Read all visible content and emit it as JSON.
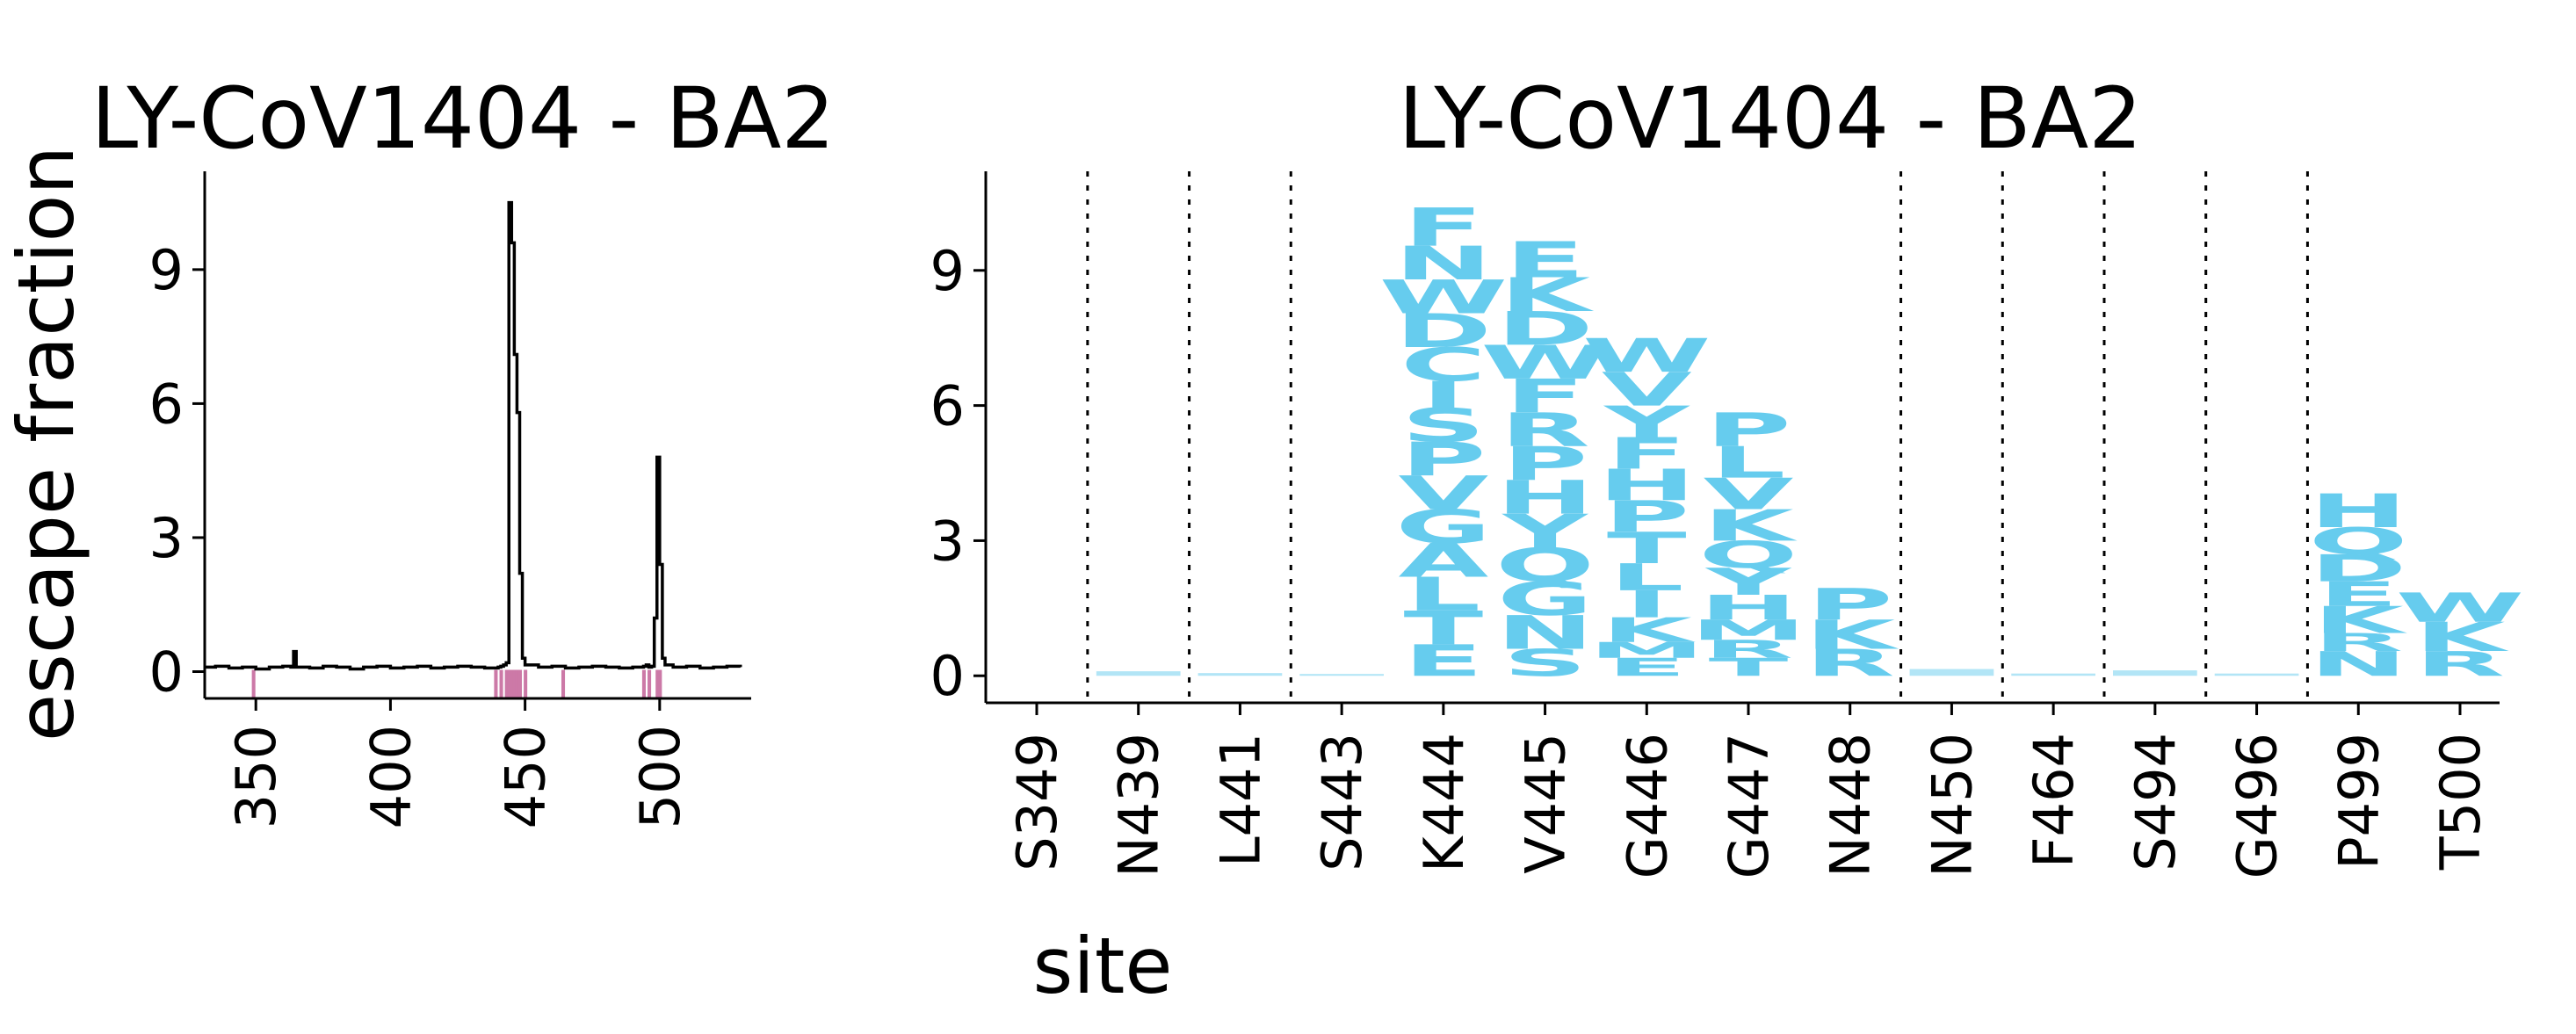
{
  "chart_data": [
    {
      "type": "line",
      "title": "LY-CoV1404 - BA2",
      "ylabel": "escape fraction",
      "xlabel": "",
      "xlim": [
        331,
        534
      ],
      "ylim": [
        -0.6,
        11.2
      ],
      "xticks": [
        350,
        400,
        450,
        500
      ],
      "yticks": [
        0,
        3,
        6,
        9
      ],
      "x": [
        331,
        335,
        340,
        345,
        350,
        355,
        360,
        363,
        364,
        365,
        370,
        375,
        380,
        385,
        390,
        395,
        400,
        405,
        410,
        415,
        420,
        425,
        430,
        435,
        440,
        441,
        442,
        443,
        444,
        445,
        446,
        447,
        448,
        449,
        450,
        455,
        460,
        465,
        470,
        475,
        480,
        485,
        490,
        494,
        495,
        496,
        497,
        498,
        499,
        500,
        501,
        502,
        505,
        510,
        515,
        520,
        525,
        530
      ],
      "y": [
        0.1,
        0.12,
        0.08,
        0.1,
        0.06,
        0.1,
        0.12,
        0.1,
        0.45,
        0.1,
        0.08,
        0.12,
        0.1,
        0.06,
        0.1,
        0.12,
        0.08,
        0.1,
        0.12,
        0.08,
        0.1,
        0.12,
        0.1,
        0.08,
        0.1,
        0.12,
        0.15,
        0.2,
        10.5,
        9.6,
        7.1,
        5.8,
        2.2,
        0.3,
        0.15,
        0.1,
        0.12,
        0.08,
        0.1,
        0.12,
        0.1,
        0.08,
        0.1,
        0.12,
        0.15,
        0.1,
        0.12,
        1.2,
        4.8,
        2.4,
        0.3,
        0.15,
        0.1,
        0.12,
        0.08,
        0.1,
        0.12,
        0.1
      ],
      "highlight_sites": [
        349,
        439,
        441,
        443,
        444,
        445,
        446,
        447,
        448,
        450,
        464,
        494,
        496,
        499,
        500
      ],
      "highlight_color": "#cc79a7",
      "line_color": "#000000"
    },
    {
      "type": "logo",
      "title": "LY-CoV1404 - BA2",
      "xlabel": "site",
      "ylim": [
        -0.6,
        11.2
      ],
      "yticks": [
        0,
        3,
        6,
        9
      ],
      "letter_color": "#66ccee",
      "minor_color": "#ccbbee",
      "sites": [
        {
          "label": "S349",
          "group": 0,
          "letters": []
        },
        {
          "label": "N439",
          "group": 1,
          "letters": [
            [
              "A",
              0.1
            ]
          ]
        },
        {
          "label": "L441",
          "group": 2,
          "letters": [
            [
              "A",
              0.06
            ]
          ]
        },
        {
          "label": "S443",
          "group": 3,
          "letters": [
            [
              "A",
              0.04
            ]
          ]
        },
        {
          "label": "K444",
          "group": 3,
          "letters": [
            [
              "E",
              0.7
            ],
            [
              "T",
              0.75
            ],
            [
              "L",
              0.75
            ],
            [
              "A",
              0.75
            ],
            [
              "G",
              0.75
            ],
            [
              "V",
              0.75
            ],
            [
              "P",
              0.75
            ],
            [
              "S",
              0.75
            ],
            [
              "I",
              0.6
            ],
            [
              "C",
              0.75
            ],
            [
              "D",
              0.75
            ],
            [
              "W",
              0.75
            ],
            [
              "N",
              0.75
            ],
            [
              "F",
              0.85
            ]
          ]
        },
        {
          "label": "V445",
          "group": 3,
          "letters": [
            [
              "S",
              0.6
            ],
            [
              "N",
              0.75
            ],
            [
              "G",
              0.75
            ],
            [
              "Q",
              0.75
            ],
            [
              "Y",
              0.75
            ],
            [
              "H",
              0.75
            ],
            [
              "P",
              0.75
            ],
            [
              "R",
              0.75
            ],
            [
              "F",
              0.75
            ],
            [
              "W",
              0.75
            ],
            [
              "D",
              0.75
            ],
            [
              "K",
              0.75
            ],
            [
              "E",
              0.8
            ]
          ]
        },
        {
          "label": "G446",
          "group": 3,
          "letters": [
            [
              "E",
              0.4
            ],
            [
              "M",
              0.35
            ],
            [
              "K",
              0.55
            ],
            [
              "I",
              0.6
            ],
            [
              "L",
              0.6
            ],
            [
              "T",
              0.7
            ],
            [
              "P",
              0.7
            ],
            [
              "H",
              0.7
            ],
            [
              "F",
              0.7
            ],
            [
              "Y",
              0.7
            ],
            [
              "V",
              0.75
            ],
            [
              "W",
              0.75
            ]
          ]
        },
        {
          "label": "G447",
          "group": 3,
          "letters": [
            [
              "T",
              0.4
            ],
            [
              "R",
              0.4
            ],
            [
              "M",
              0.45
            ],
            [
              "H",
              0.55
            ],
            [
              "Y",
              0.6
            ],
            [
              "Q",
              0.6
            ],
            [
              "K",
              0.7
            ],
            [
              "V",
              0.7
            ],
            [
              "L",
              0.7
            ],
            [
              "P",
              0.75
            ]
          ]
        },
        {
          "label": "N448",
          "group": 3,
          "letters": [
            [
              "R",
              0.6
            ],
            [
              "K",
              0.65
            ],
            [
              "P",
              0.7
            ]
          ]
        },
        {
          "label": "N450",
          "group": 4,
          "letters": [
            [
              "A",
              0.15
            ]
          ]
        },
        {
          "label": "F464",
          "group": 5,
          "letters": [
            [
              "A",
              0.05
            ]
          ]
        },
        {
          "label": "S494",
          "group": 6,
          "letters": [
            [
              "A",
              0.12
            ]
          ]
        },
        {
          "label": "G496",
          "group": 7,
          "letters": [
            [
              "A",
              0.05
            ]
          ]
        },
        {
          "label": "P499",
          "group": 8,
          "letters": [
            [
              "N",
              0.55
            ],
            [
              "R",
              0.4
            ],
            [
              "K",
              0.6
            ],
            [
              "E",
              0.55
            ],
            [
              "D",
              0.6
            ],
            [
              "Q",
              0.6
            ],
            [
              "H",
              0.75
            ]
          ]
        },
        {
          "label": "T500",
          "group": 8,
          "letters": [
            [
              "R",
              0.55
            ],
            [
              "K",
              0.65
            ],
            [
              "W",
              0.65
            ]
          ]
        }
      ]
    }
  ]
}
